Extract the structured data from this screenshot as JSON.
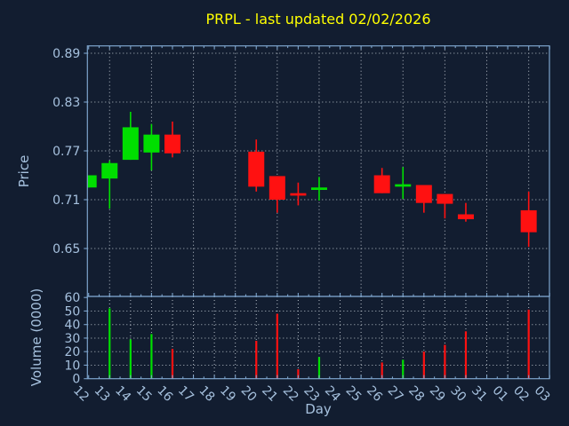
{
  "chart_data": {
    "type": "candlestick",
    "title": "PRPL - last updated 02/02/2026",
    "xlabel": "Day",
    "legend": "none",
    "grid": "dotted",
    "price_axis": {
      "label": "Price",
      "ticks": [
        0.89,
        0.83,
        0.77,
        0.71,
        0.65
      ],
      "ylim": [
        0.59,
        0.9
      ]
    },
    "volume_axis": {
      "label": "Volume (0000)",
      "ticks": [
        60,
        50,
        40,
        30,
        20,
        10,
        0
      ],
      "ylim": [
        0,
        60
      ]
    },
    "colors": {
      "up": "#00df00",
      "down": "#ff1111",
      "title": "#ffff00",
      "axis": "#7da4cc",
      "tick_label": "#a6c1de",
      "grid": "#b6bec7",
      "background": "#121d30"
    },
    "days": [
      {
        "label": "12",
        "open": 0.725,
        "high": 0.74,
        "low": 0.725,
        "close": 0.74,
        "volume": null
      },
      {
        "label": "13",
        "open": 0.736,
        "high": 0.758,
        "low": 0.699,
        "close": 0.755,
        "volume": 52
      },
      {
        "label": "14",
        "open": 0.759,
        "high": 0.818,
        "low": 0.759,
        "close": 0.799,
        "volume": 29
      },
      {
        "label": "15",
        "open": 0.768,
        "high": 0.803,
        "low": 0.746,
        "close": 0.79,
        "volume": 33
      },
      {
        "label": "16",
        "open": 0.79,
        "high": 0.806,
        "low": 0.762,
        "close": 0.767,
        "volume": 22
      },
      {
        "label": "17",
        "open": null,
        "high": null,
        "low": null,
        "close": null,
        "volume": null
      },
      {
        "label": "18",
        "open": null,
        "high": null,
        "low": null,
        "close": null,
        "volume": null
      },
      {
        "label": "19",
        "open": null,
        "high": null,
        "low": null,
        "close": null,
        "volume": null
      },
      {
        "label": "20",
        "open": 0.769,
        "high": 0.784,
        "low": 0.72,
        "close": 0.726,
        "volume": 28
      },
      {
        "label": "21",
        "open": 0.739,
        "high": 0.739,
        "low": 0.694,
        "close": 0.71,
        "volume": 48
      },
      {
        "label": "22",
        "open": 0.718,
        "high": 0.731,
        "low": 0.703,
        "close": 0.715,
        "volume": 7
      },
      {
        "label": "23",
        "open": 0.722,
        "high": 0.738,
        "low": 0.709,
        "close": 0.725,
        "volume": 16
      },
      {
        "label": "24",
        "open": null,
        "high": null,
        "low": null,
        "close": null,
        "volume": null
      },
      {
        "label": "25",
        "open": null,
        "high": null,
        "low": null,
        "close": null,
        "volume": null
      },
      {
        "label": "26",
        "open": 0.74,
        "high": 0.749,
        "low": 0.718,
        "close": 0.718,
        "volume": 12
      },
      {
        "label": "27",
        "open": 0.726,
        "high": 0.75,
        "low": 0.711,
        "close": 0.729,
        "volume": 14
      },
      {
        "label": "28",
        "open": 0.728,
        "high": 0.728,
        "low": 0.694,
        "close": 0.706,
        "volume": 20
      },
      {
        "label": "29",
        "open": 0.717,
        "high": 0.717,
        "low": 0.687,
        "close": 0.705,
        "volume": 25
      },
      {
        "label": "30",
        "open": 0.692,
        "high": 0.706,
        "low": 0.683,
        "close": 0.686,
        "volume": 35
      },
      {
        "label": "31",
        "open": null,
        "high": null,
        "low": null,
        "close": null,
        "volume": null
      },
      {
        "label": "01",
        "open": null,
        "high": null,
        "low": null,
        "close": null,
        "volume": null
      },
      {
        "label": "02",
        "open": 0.697,
        "high": 0.72,
        "low": 0.652,
        "close": 0.67,
        "volume": 51
      },
      {
        "label": "03",
        "open": null,
        "high": null,
        "low": null,
        "close": null,
        "volume": null
      }
    ]
  }
}
